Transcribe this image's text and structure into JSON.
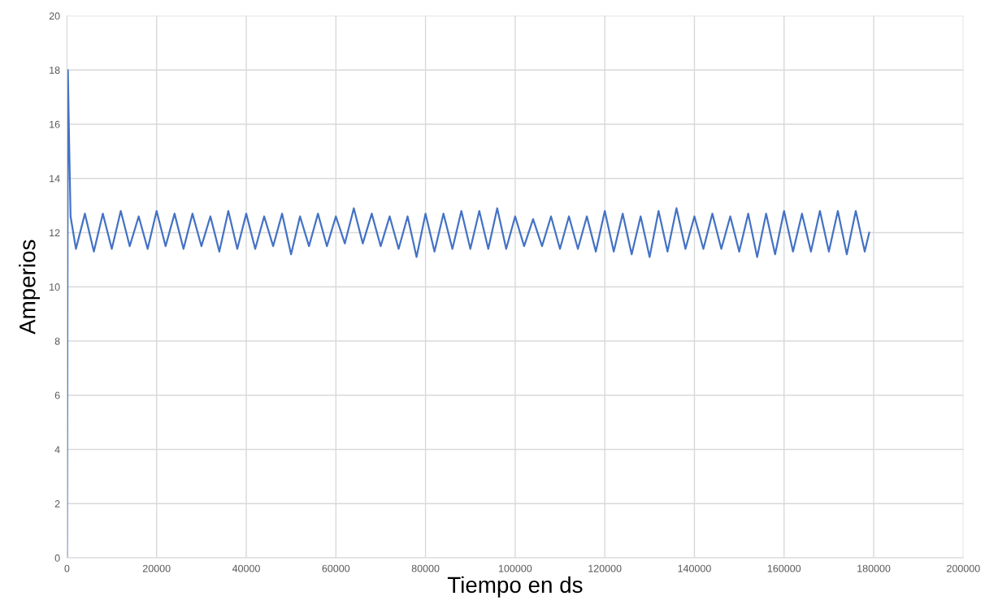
{
  "chart_data": {
    "type": "line",
    "xlabel": "Tiempo en ds",
    "ylabel": "Amperios",
    "xlim": [
      0,
      200000
    ],
    "xticks": [
      0,
      20000,
      40000,
      60000,
      80000,
      100000,
      120000,
      140000,
      160000,
      180000,
      200000
    ],
    "ylim": [
      0,
      20
    ],
    "yticks": [
      0,
      2,
      4,
      6,
      8,
      10,
      12,
      14,
      16,
      18,
      20
    ],
    "grid": true,
    "marker": "none",
    "line_style": "solid",
    "series": [
      {
        "color": "#4472c4",
        "x": [
          0,
          200,
          500,
          800,
          2000,
          4000,
          6000,
          8000,
          10000,
          12000,
          14000,
          16000,
          18000,
          20000,
          22000,
          24000,
          26000,
          28000,
          30000,
          32000,
          34000,
          36000,
          38000,
          40000,
          42000,
          44000,
          46000,
          48000,
          50000,
          52000,
          54000,
          56000,
          58000,
          60000,
          62000,
          64000,
          66000,
          68000,
          70000,
          72000,
          74000,
          76000,
          78000,
          80000,
          82000,
          84000,
          86000,
          88000,
          90000,
          92000,
          94000,
          96000,
          98000,
          100000,
          102000,
          104000,
          106000,
          108000,
          110000,
          112000,
          114000,
          116000,
          118000,
          120000,
          122000,
          124000,
          126000,
          128000,
          130000,
          132000,
          134000,
          136000,
          138000,
          140000,
          142000,
          144000,
          146000,
          148000,
          150000,
          152000,
          154000,
          156000,
          158000,
          160000,
          162000,
          164000,
          166000,
          168000,
          170000,
          172000,
          174000,
          176000,
          178000,
          179000
        ],
        "values": [
          0,
          18,
          15.2,
          12.6,
          11.4,
          12.7,
          11.3,
          12.7,
          11.4,
          12.8,
          11.5,
          12.6,
          11.4,
          12.8,
          11.5,
          12.7,
          11.4,
          12.7,
          11.5,
          12.6,
          11.3,
          12.8,
          11.4,
          12.7,
          11.4,
          12.6,
          11.5,
          12.7,
          11.2,
          12.6,
          11.5,
          12.7,
          11.5,
          12.6,
          11.6,
          12.9,
          11.6,
          12.7,
          11.5,
          12.6,
          11.4,
          12.6,
          11.1,
          12.7,
          11.3,
          12.7,
          11.4,
          12.8,
          11.4,
          12.8,
          11.4,
          12.9,
          11.4,
          12.6,
          11.5,
          12.5,
          11.5,
          12.6,
          11.4,
          12.6,
          11.4,
          12.6,
          11.3,
          12.8,
          11.3,
          12.7,
          11.2,
          12.6,
          11.1,
          12.8,
          11.3,
          12.9,
          11.4,
          12.6,
          11.4,
          12.7,
          11.4,
          12.6,
          11.3,
          12.7,
          11.1,
          12.7,
          11.2,
          12.8,
          11.3,
          12.7,
          11.3,
          12.8,
          11.3,
          12.8,
          11.2,
          12.8,
          11.3,
          12.0
        ]
      }
    ]
  }
}
